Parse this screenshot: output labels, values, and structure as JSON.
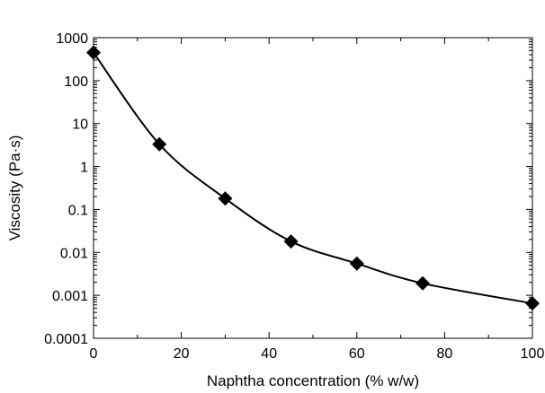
{
  "chart_data": {
    "type": "line",
    "title": "",
    "xlabel": "Naphtha concentration (% w/w)",
    "ylabel": "Viscosity (Pa·s)",
    "xlim": [
      0,
      100
    ],
    "ylim": [
      0.0001,
      1000
    ],
    "yscale": "log",
    "grid": false,
    "legend": "none",
    "marker": "diamond",
    "color": "#000000",
    "x_ticks": [
      {
        "value": 0,
        "label": "0"
      },
      {
        "value": 20,
        "label": "20"
      },
      {
        "value": 40,
        "label": "40"
      },
      {
        "value": 60,
        "label": "60"
      },
      {
        "value": 80,
        "label": "80"
      },
      {
        "value": 100,
        "label": "100"
      }
    ],
    "y_ticks": [
      {
        "value": 0.0001,
        "label": "0.0001"
      },
      {
        "value": 0.001,
        "label": "0.001"
      },
      {
        "value": 0.01,
        "label": "0.01"
      },
      {
        "value": 0.1,
        "label": "0.1"
      },
      {
        "value": 1,
        "label": "1"
      },
      {
        "value": 10,
        "label": "10"
      },
      {
        "value": 100,
        "label": "100"
      },
      {
        "value": 1000,
        "label": "1000"
      }
    ],
    "series": [
      {
        "x": [
          0,
          15,
          30,
          45,
          60,
          75,
          100
        ],
        "y": [
          450,
          3.3,
          0.18,
          0.018,
          0.0055,
          0.0019,
          0.00065
        ]
      }
    ]
  }
}
